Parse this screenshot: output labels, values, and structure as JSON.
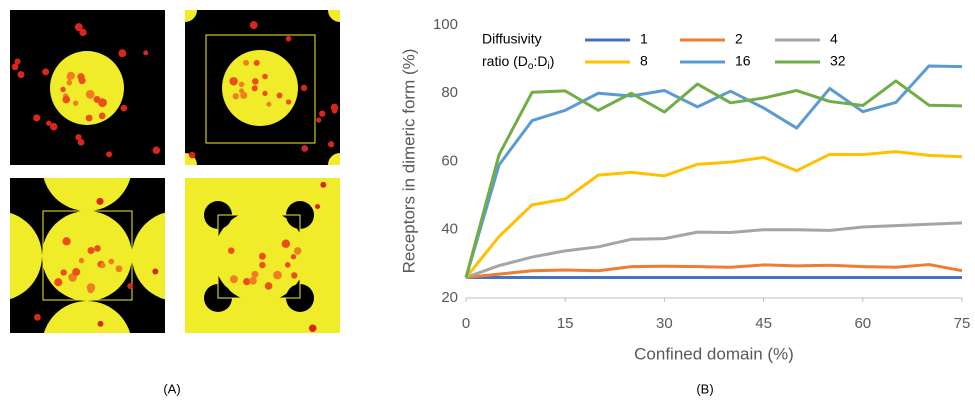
{
  "chart_data": {
    "type": "line",
    "panel_labels": [
      "(A)",
      "(B)"
    ],
    "x_label": "Confined domain (%)",
    "y_label": "Receptors in dimeric form (%)",
    "legend_title": [
      "Diffusivity",
      "ratio (D",
      "o",
      ":D",
      "i",
      ")"
    ],
    "x": [
      0,
      5,
      10,
      15,
      20,
      25,
      30,
      35,
      40,
      45,
      50,
      55,
      60,
      65,
      70,
      75
    ],
    "xlim": [
      0,
      75
    ],
    "xticks": [
      0,
      15,
      30,
      45,
      60,
      75
    ],
    "ylim": [
      20,
      100
    ],
    "yticks": [
      20,
      40,
      60,
      80,
      100
    ],
    "grid": false,
    "series": [
      {
        "name": "1",
        "color": "#4472c4",
        "values": [
          26,
          26,
          26,
          26,
          26,
          26,
          26,
          26,
          26,
          26,
          26,
          26,
          26,
          26,
          26,
          26
        ]
      },
      {
        "name": "2",
        "color": "#ed7d31",
        "values": [
          26,
          27,
          28,
          28.2,
          28,
          29.2,
          29.3,
          29.2,
          29,
          29.7,
          29.4,
          29.6,
          29.2,
          29,
          29.8,
          28
        ]
      },
      {
        "name": "4",
        "color": "#a5a5a5",
        "values": [
          26,
          29.5,
          32,
          33.8,
          35,
          37.2,
          37.4,
          39.3,
          39.2,
          40,
          40,
          39.8,
          40.8,
          41.2,
          41.6,
          42
        ]
      },
      {
        "name": "8",
        "color": "#ffc000",
        "values": [
          26,
          38,
          47.3,
          49,
          56,
          56.8,
          55.8,
          59.2,
          59.8,
          61.2,
          57.3,
          62.1,
          62,
          62.9,
          61.8,
          61.4
        ]
      },
      {
        "name": "16",
        "color": "#5b9bd5",
        "values": [
          26,
          59,
          72,
          75,
          80,
          79.2,
          80.8,
          76,
          80.6,
          75.7,
          69.8,
          81.4,
          74.6,
          77.3,
          88,
          87.8
        ]
      },
      {
        "name": "32",
        "color": "#70ad47",
        "values": [
          26,
          62,
          80.3,
          80.7,
          75,
          80,
          74.5,
          82.7,
          77.2,
          78.6,
          80.8,
          77.6,
          76.4,
          83.6,
          76.5,
          76.3
        ]
      }
    ]
  }
}
